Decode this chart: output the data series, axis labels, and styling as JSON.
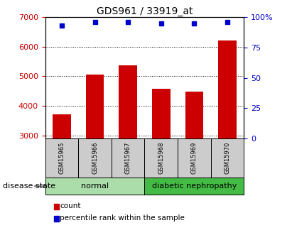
{
  "title": "GDS961 / 33919_at",
  "samples": [
    "GSM15965",
    "GSM15966",
    "GSM15967",
    "GSM15968",
    "GSM15969",
    "GSM15970"
  ],
  "counts": [
    3720,
    5070,
    5360,
    4580,
    4480,
    6200
  ],
  "percentile_ranks": [
    93,
    96,
    96,
    95,
    95,
    96
  ],
  "ylim_left": [
    2900,
    7000
  ],
  "ylim_right": [
    0,
    100
  ],
  "yticks_left": [
    3000,
    4000,
    5000,
    6000,
    7000
  ],
  "yticks_right": [
    0,
    25,
    50,
    75,
    100
  ],
  "ytick_labels_right": [
    "0",
    "25",
    "50",
    "75",
    "100%"
  ],
  "bar_color": "#cc0000",
  "dot_color": "#0000cc",
  "bar_bottom": 2900,
  "groups": [
    {
      "label": "normal",
      "indices": [
        0,
        1,
        2
      ],
      "color": "#99ee99"
    },
    {
      "label": "diabetic nephropathy",
      "indices": [
        3,
        4,
        5
      ],
      "color": "#44cc44"
    }
  ],
  "disease_state_label": "disease state",
  "legend_items": [
    {
      "label": "count",
      "color": "#cc0000"
    },
    {
      "label": "percentile rank within the sample",
      "color": "#0000cc"
    }
  ],
  "background_color": "#ffffff",
  "tick_color_left": "#cc0000",
  "tick_color_right": "#0000cc",
  "bar_width": 0.55,
  "sample_box_color": "#cccccc",
  "normal_group_color": "#aaddaa",
  "diabetic_group_color": "#44bb44"
}
